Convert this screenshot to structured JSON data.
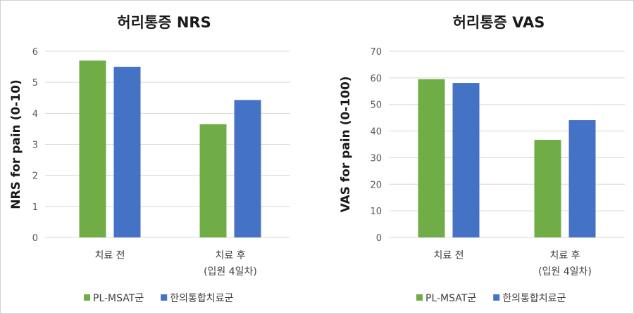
{
  "chart_data": [
    {
      "type": "bar",
      "title": "허리통증 NRS",
      "ylabel": "NRS for pain (0-10)",
      "ylim": [
        0,
        6
      ],
      "yticks": [
        0,
        1,
        2,
        3,
        4,
        5,
        6
      ],
      "grid": true,
      "legend_position": "bottom",
      "categories": [
        [
          "치료 전"
        ],
        [
          "치료 후",
          "(입원 4일차)"
        ]
      ],
      "series": [
        {
          "name": "PL-MSAT군",
          "color": "#70ad47",
          "values": [
            5.7,
            3.65
          ]
        },
        {
          "name": "한의통합치료군",
          "color": "#4472c4",
          "values": [
            5.5,
            4.43
          ]
        }
      ]
    },
    {
      "type": "bar",
      "title": "허리통증 VAS",
      "ylabel": "VAS for pain (0-100)",
      "ylim": [
        0,
        70
      ],
      "yticks": [
        0,
        10,
        20,
        30,
        40,
        50,
        60,
        70
      ],
      "grid": true,
      "legend_position": "bottom",
      "categories": [
        [
          "치료 전"
        ],
        [
          "치료 후",
          "(입원 4일차)"
        ]
      ],
      "series": [
        {
          "name": "PL-MSAT군",
          "color": "#70ad47",
          "values": [
            59.5,
            36.7
          ]
        },
        {
          "name": "한의통합치료군",
          "color": "#4472c4",
          "values": [
            58.1,
            44.1
          ]
        }
      ]
    }
  ]
}
